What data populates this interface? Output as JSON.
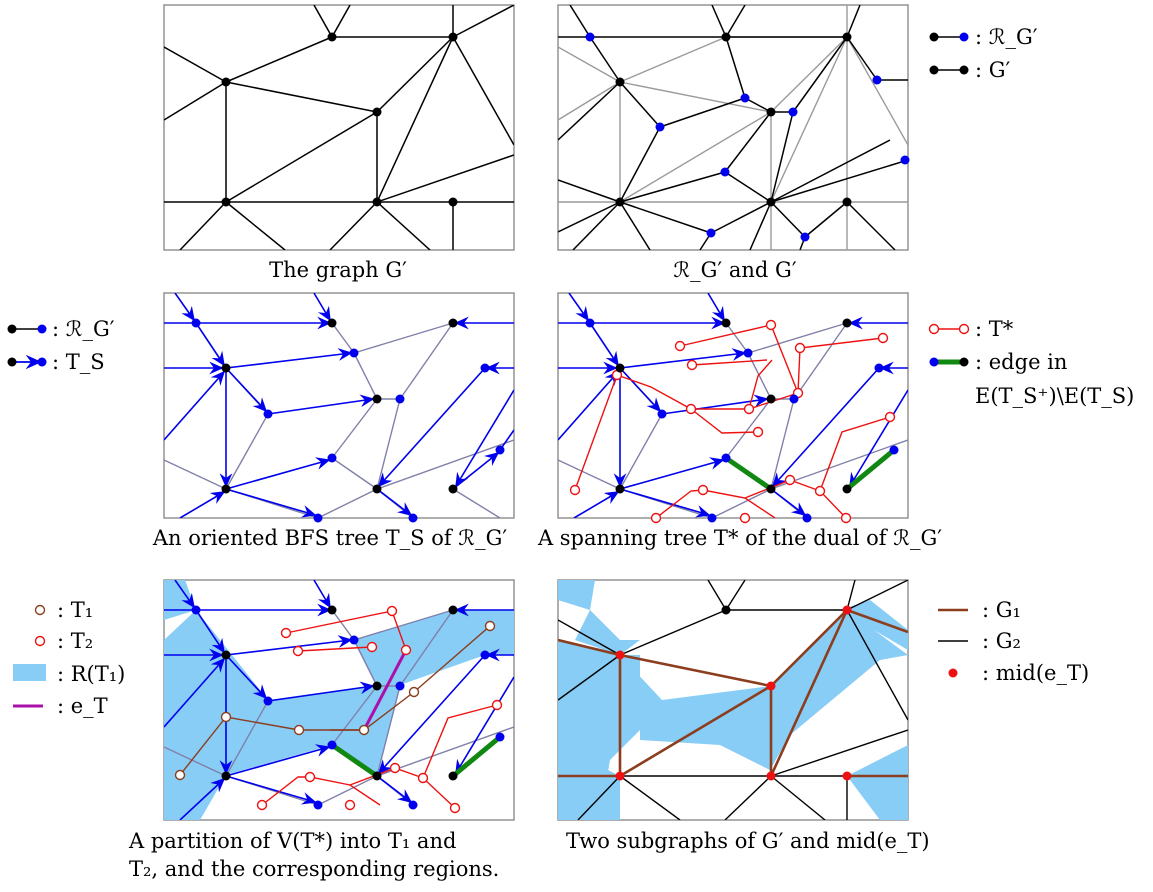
{
  "colors": {
    "black": "#000000",
    "blue": "#0000ee",
    "gray_edge": "#9a9a9a",
    "purple_edge": "#8080aa",
    "red": "#ee1111",
    "green": "#118811",
    "brown": "#8b3d1e",
    "magenta": "#aa11aa",
    "region": "#87cdf6",
    "frame": "#8c8c8c"
  },
  "captions": {
    "p1": "The graph G′",
    "p2": "ℛ_G′ and G′",
    "p3": "An oriented BFS tree T_S of ℛ_G′",
    "p4": "A spanning tree T* of the dual of ℛ_G′",
    "p5_line1": "A partition of V(T*) into T₁ and",
    "p5_line2": "T₂, and the corresponding regions.",
    "p6": "Two subgraphs of G′ and mid(e_T)"
  },
  "legends": {
    "l1": [
      ": ℛ_G′",
      ": G′"
    ],
    "l2": [
      ": ℛ_G′",
      ": T_S"
    ],
    "l3": [
      ": T*",
      ": edge in",
      "E(T_S⁺)\\E(T_S)"
    ],
    "l4": [
      ": T₁",
      ": T₂",
      ": R(T₁)",
      ": e_T"
    ],
    "l5": [
      ": G₁",
      ": G₂",
      ": mid(e_T)"
    ]
  }
}
